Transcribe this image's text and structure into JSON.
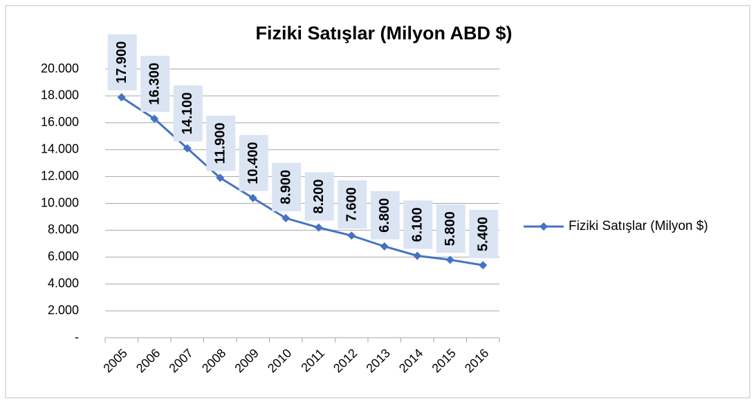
{
  "chart_data": {
    "type": "line",
    "title": "Fiziki Satışlar (Milyon ABD $)",
    "categories": [
      "2005",
      "2006",
      "2007",
      "2008",
      "2009",
      "2010",
      "2011",
      "2012",
      "2013",
      "2014",
      "2015",
      "2016"
    ],
    "series": [
      {
        "name": "Fiziki Satışlar (Milyon $)",
        "color": "#4472c4",
        "values": [
          17900,
          16300,
          14100,
          11900,
          10400,
          8900,
          8200,
          7600,
          6800,
          6100,
          5800,
          5400
        ],
        "value_labels": [
          "17.900",
          "16.300",
          "14.100",
          "11.900",
          "10.400",
          "8.900",
          "8.200",
          "7.600",
          "6.800",
          "6.100",
          "5.800",
          "5.400"
        ]
      }
    ],
    "ylim": [
      0,
      20000
    ],
    "yticks": [
      {
        "value": 0,
        "label": "-"
      },
      {
        "value": 2000,
        "label": "2.000"
      },
      {
        "value": 4000,
        "label": "4.000"
      },
      {
        "value": 6000,
        "label": "6.000"
      },
      {
        "value": 8000,
        "label": "8.000"
      },
      {
        "value": 10000,
        "label": "10.000"
      },
      {
        "value": 12000,
        "label": "12.000"
      },
      {
        "value": 14000,
        "label": "14.000"
      },
      {
        "value": 16000,
        "label": "16.000"
      },
      {
        "value": 18000,
        "label": "18.000"
      },
      {
        "value": 20000,
        "label": "20.000"
      }
    ],
    "grid": true,
    "legend": "right"
  }
}
